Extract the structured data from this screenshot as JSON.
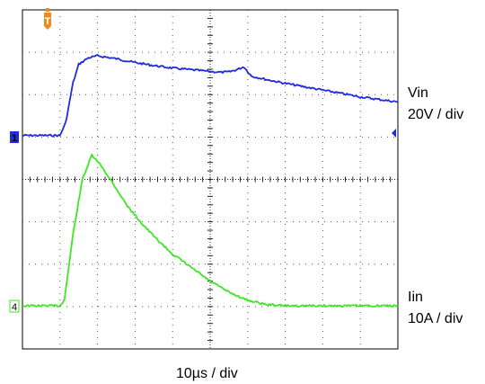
{
  "chart_data": {
    "type": "line",
    "description": "Oscilloscope capture of an input voltage and input current transient",
    "grid": true,
    "grid_divisions": {
      "x": 10,
      "y": 8
    },
    "x_scale": "10µs / div",
    "series": [
      {
        "name": "Vin",
        "scale": "20V / div",
        "channel_marker": "1",
        "color": "#1f2bdc",
        "unit": "div",
        "x": [
          0,
          0.5,
          1.0,
          1.15,
          1.35,
          1.5,
          1.75,
          2.0,
          2.5,
          3.0,
          3.5,
          4.0,
          4.5,
          5.0,
          5.3,
          5.5,
          5.7,
          5.9,
          6.1,
          6.5,
          7.0,
          7.5,
          8.0,
          8.5,
          9.0,
          9.5,
          10.0
        ],
        "y": [
          0.05,
          0.05,
          0.05,
          0.35,
          1.3,
          1.73,
          1.88,
          1.93,
          1.86,
          1.77,
          1.7,
          1.64,
          1.6,
          1.56,
          1.54,
          1.55,
          1.6,
          1.67,
          1.45,
          1.37,
          1.28,
          1.2,
          1.12,
          1.04,
          0.96,
          0.9,
          0.84
        ]
      },
      {
        "name": "Iin",
        "scale": "10A / div",
        "channel_marker": "4",
        "color": "#3de823",
        "unit": "div",
        "x": [
          0,
          0.5,
          1.0,
          1.12,
          1.35,
          1.6,
          1.85,
          2.1,
          2.4,
          2.8,
          3.2,
          3.6,
          4.0,
          4.5,
          5.0,
          5.5,
          6.0,
          6.5,
          7.0,
          7.5,
          8.0,
          8.5,
          9.0,
          9.5,
          10.0
        ],
        "y": [
          0.0,
          0.0,
          0.0,
          0.15,
          1.7,
          3.0,
          3.55,
          3.3,
          2.9,
          2.35,
          1.92,
          1.55,
          1.22,
          0.9,
          0.58,
          0.32,
          0.13,
          0.03,
          0.0,
          0.0,
          0.0,
          0.0,
          0.0,
          0.0,
          0.0
        ]
      }
    ],
    "trigger_marker": "T",
    "xlabel": "10µs / div"
  },
  "labels": {
    "vin_name": "Vin",
    "vin_scale": "20V / div",
    "iin_name": "Iin",
    "iin_scale": "10A / div",
    "time_scale": "10µs / div",
    "ch1_marker": "1",
    "ch4_marker": "4",
    "trigger": "T"
  },
  "colors": {
    "vin": "#1f2bdc",
    "iin": "#3de823",
    "trigger": "#f08a1c",
    "grid": "#000000",
    "background": "#ffffff"
  }
}
